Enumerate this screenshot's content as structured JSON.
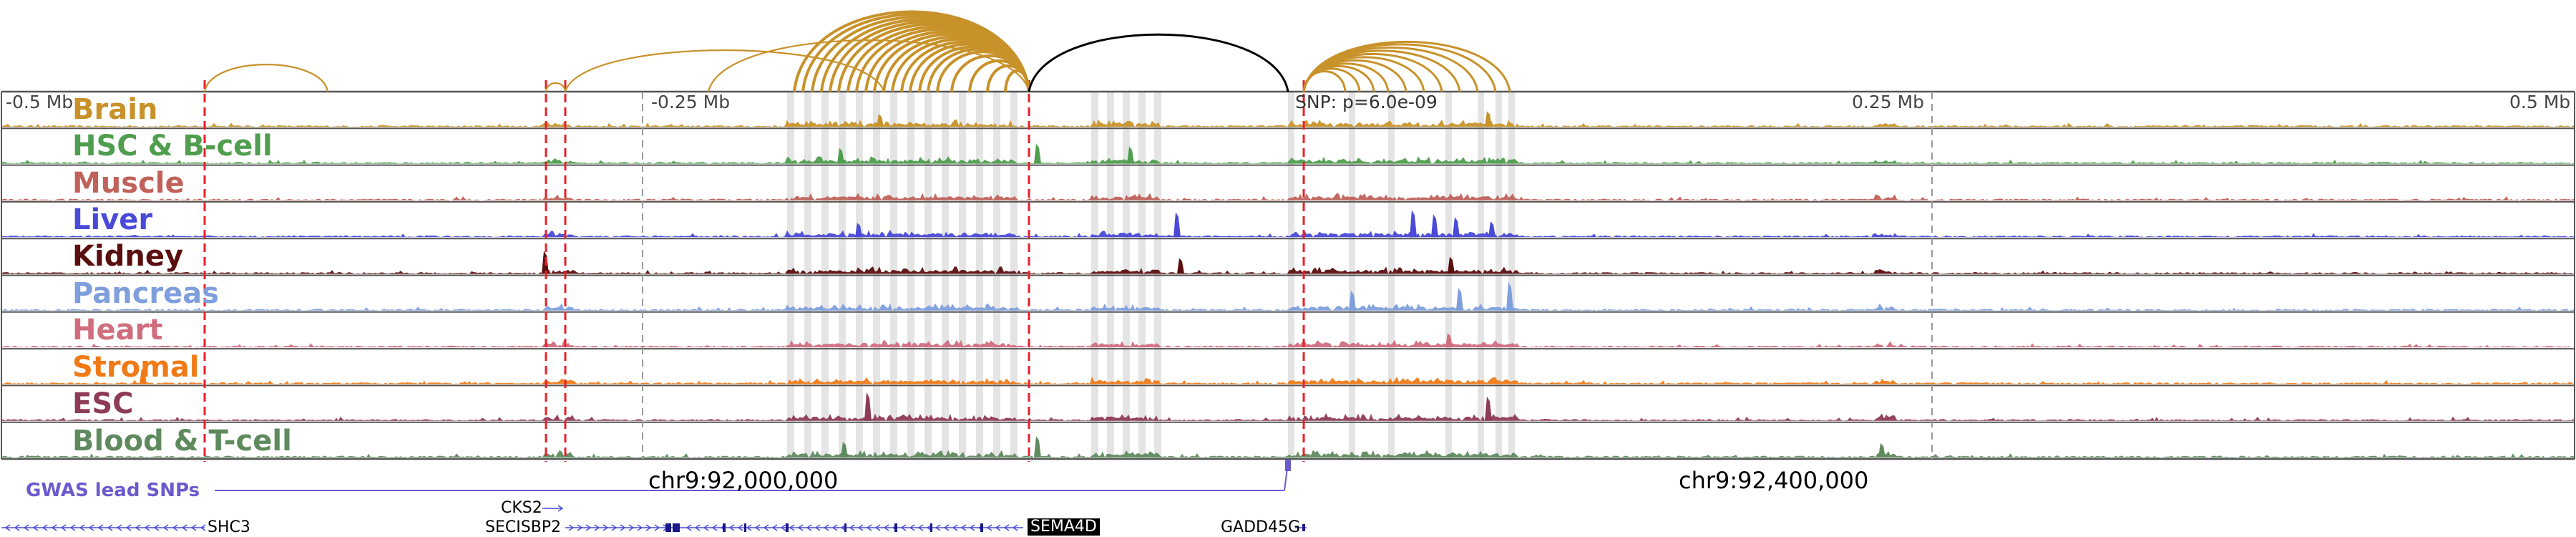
{
  "axis": {
    "ticks": [
      {
        "id": "tick-minus-05",
        "label": "-0.5 Mb",
        "pos": -0.5
      },
      {
        "id": "tick-minus-025",
        "label": "-0.25 Mb",
        "pos": -0.25
      },
      {
        "id": "tick-plus-025",
        "label": "0.25 Mb",
        "pos": 0.25
      },
      {
        "id": "tick-plus-05",
        "label": "0.5 Mb",
        "pos": 0.5
      }
    ],
    "snp_label": "SNP: p=6.0e-09"
  },
  "tracks": [
    {
      "name": "Brain",
      "color": "#c8922a"
    },
    {
      "name": "HSC & B-cell",
      "color": "#4f9e4f"
    },
    {
      "name": "Muscle",
      "color": "#c0625a"
    },
    {
      "name": "Liver",
      "color": "#4a4ad8"
    },
    {
      "name": "Kidney",
      "color": "#5a0f0f"
    },
    {
      "name": "Pancreas",
      "color": "#7f9fdc"
    },
    {
      "name": "Heart",
      "color": "#d06e7e"
    },
    {
      "name": "Stromal",
      "color": "#f07a16"
    },
    {
      "name": "ESC",
      "color": "#8e3b57"
    },
    {
      "name": "Blood & T-cell",
      "color": "#5e8a5e"
    }
  ],
  "coordinates": {
    "left": "chr9:92,000,000",
    "right": "chr9:92,400,000"
  },
  "gwas": {
    "label": "GWAS lead SNPs",
    "color": "#6a5acd"
  },
  "genes": [
    {
      "id": "shc3",
      "name": "SHC3",
      "highlight": false
    },
    {
      "id": "cks2",
      "name": "CKS2",
      "highlight": false
    },
    {
      "id": "secisbp2",
      "name": "SECISBP2",
      "highlight": false
    },
    {
      "id": "sema4d",
      "name": "SEMA4D",
      "highlight": true
    },
    {
      "id": "gadd45g",
      "name": "GADD45G",
      "highlight": false
    }
  ],
  "colors": {
    "arc": "#c8922a",
    "lead_arc": "#000000",
    "highlight_line": "#e8202a",
    "peak_band": "#e4e4e4",
    "tick_line": "#9a9a9a"
  }
}
